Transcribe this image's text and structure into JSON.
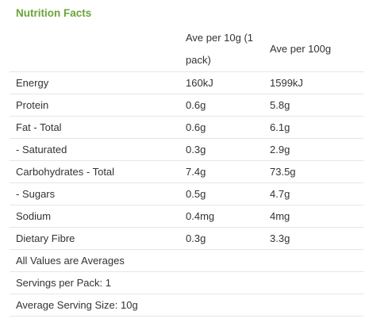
{
  "title": "Nutrition Facts",
  "columns": {
    "col1": "",
    "col2": "Ave per 10g (1 pack)",
    "col3": "Ave per 100g"
  },
  "rows": [
    {
      "label": "Energy",
      "per_serving": "160kJ",
      "per_100g": "1599kJ"
    },
    {
      "label": "Protein",
      "per_serving": "0.6g",
      "per_100g": "5.8g"
    },
    {
      "label": "Fat - Total",
      "per_serving": "0.6g",
      "per_100g": "6.1g"
    },
    {
      "label": "- Saturated",
      "per_serving": "0.3g",
      "per_100g": "2.9g"
    },
    {
      "label": "Carbohydrates - Total",
      "per_serving": "7.4g",
      "per_100g": "73.5g"
    },
    {
      "label": "- Sugars",
      "per_serving": "0.5g",
      "per_100g": "4.7g"
    },
    {
      "label": "Sodium",
      "per_serving": "0.4mg",
      "per_100g": "4mg"
    },
    {
      "label": "Dietary Fibre",
      "per_serving": "0.3g",
      "per_100g": "3.3g"
    }
  ],
  "notes": [
    "All Values are Averages",
    "Servings per Pack: 1",
    "Average Serving Size: 10g"
  ]
}
